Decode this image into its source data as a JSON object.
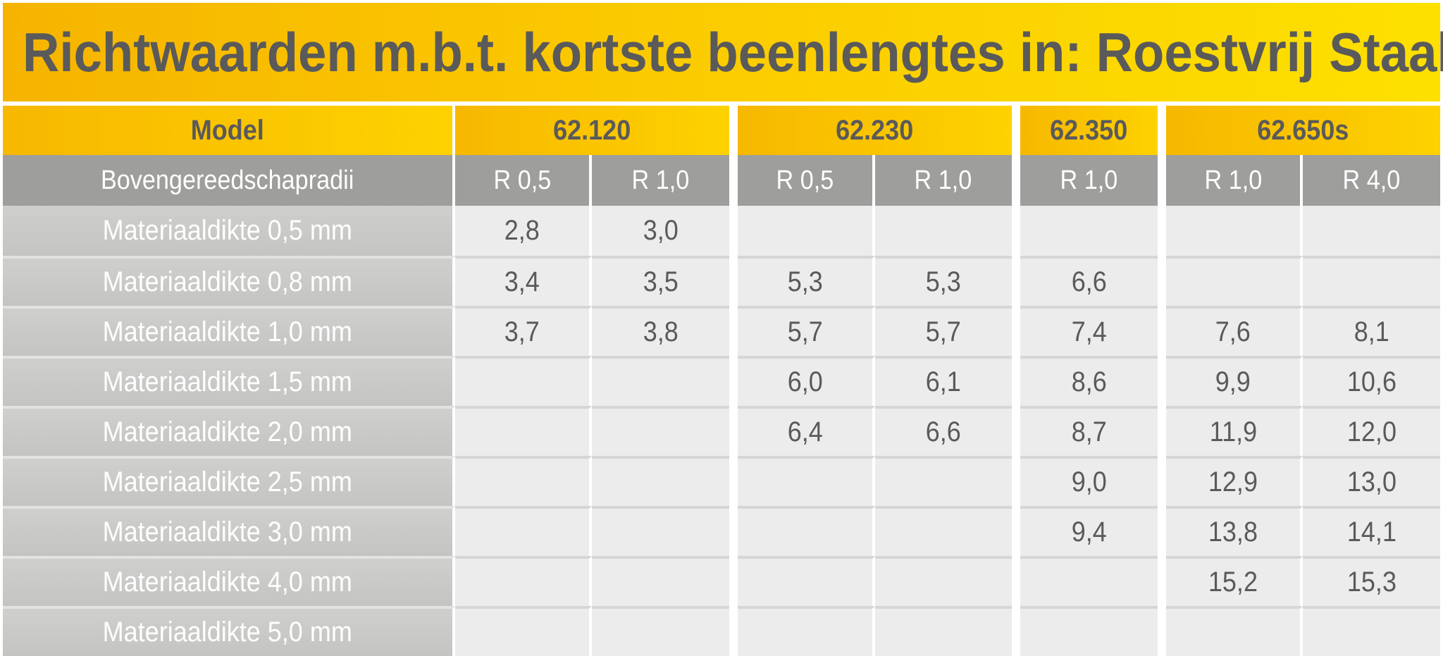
{
  "title": "Richtwaarden m.b.t. kortste beenlengtes in: Roestvrij Staal",
  "header": {
    "model_label": "Model",
    "radii_label": "Bovengereedschapradii",
    "models": [
      "62.120",
      "62.230",
      "62.350",
      "62.650s"
    ],
    "radii": [
      "R 0,5",
      "R 1,0",
      "R 0,5",
      "R 1,0",
      "R 1,0",
      "R 1,0",
      "R 4,0"
    ]
  },
  "rows": [
    {
      "label": "Materiaaldikte 0,5 mm",
      "values": [
        "2,8",
        "3,0",
        "",
        "",
        "",
        "",
        ""
      ]
    },
    {
      "label": "Materiaaldikte 0,8 mm",
      "values": [
        "3,4",
        "3,5",
        "5,3",
        "5,3",
        "6,6",
        "",
        ""
      ]
    },
    {
      "label": "Materiaaldikte 1,0 mm",
      "values": [
        "3,7",
        "3,8",
        "5,7",
        "5,7",
        "7,4",
        "7,6",
        "8,1"
      ]
    },
    {
      "label": "Materiaaldikte 1,5 mm",
      "values": [
        "",
        "",
        "6,0",
        "6,1",
        "8,6",
        "9,9",
        "10,6"
      ]
    },
    {
      "label": "Materiaaldikte 2,0 mm",
      "values": [
        "",
        "",
        "6,4",
        "6,6",
        "8,7",
        "11,9",
        "12,0"
      ]
    },
    {
      "label": "Materiaaldikte 2,5 mm",
      "values": [
        "",
        "",
        "",
        "",
        "9,0",
        "12,9",
        "13,0"
      ]
    },
    {
      "label": "Materiaaldikte 3,0 mm",
      "values": [
        "",
        "",
        "",
        "",
        "9,4",
        "13,8",
        "14,1"
      ]
    },
    {
      "label": "Materiaaldikte 4,0 mm",
      "values": [
        "",
        "",
        "",
        "",
        "",
        "15,2",
        "15,3"
      ]
    },
    {
      "label": "Materiaaldikte 5,0 mm",
      "values": [
        "",
        "",
        "",
        "",
        "",
        "",
        ""
      ]
    }
  ],
  "colors": {
    "title_bg": "#fbc800",
    "title_text": "#5a5a5a",
    "header_grey": "#9e9e9c",
    "label_bg": "#c8c8c6",
    "cell_bg": "#ececec"
  }
}
